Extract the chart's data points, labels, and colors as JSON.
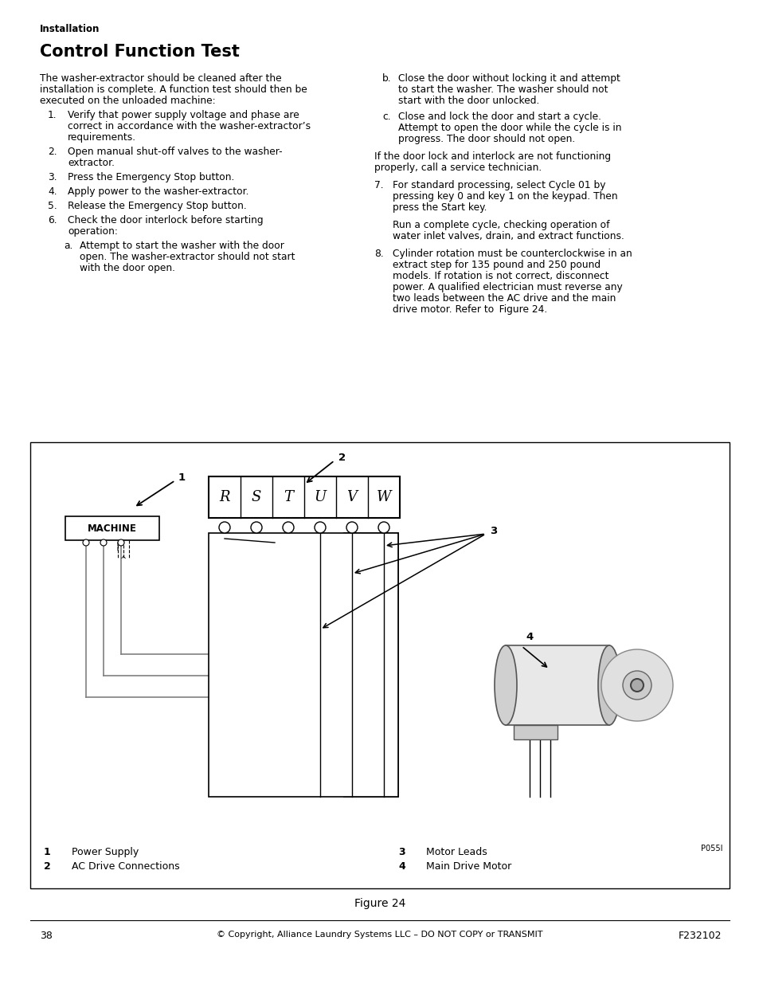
{
  "page_number": "38",
  "copyright": "© Copyright, Alliance Laundry Systems LLC – DO NOT COPY or TRANSMIT",
  "doc_number": "F232102",
  "section_label": "Installation",
  "title": "Control Function Test",
  "figure_caption": "Figure 24",
  "figure_code": "P055I",
  "terminal_labels": [
    "R",
    "S",
    "T",
    "U",
    "V",
    "W"
  ],
  "legend": [
    {
      "num": "1",
      "label": "Power Supply"
    },
    {
      "num": "2",
      "label": "AC Drive Connections"
    },
    {
      "num": "3",
      "label": "Motor Leads"
    },
    {
      "num": "4",
      "label": "Main Drive Motor"
    }
  ],
  "bg_color": "#ffffff",
  "text_color": "#000000"
}
